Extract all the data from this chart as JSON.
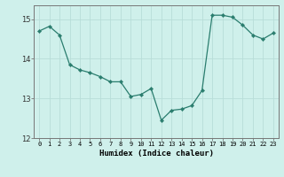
{
  "x": [
    0,
    1,
    2,
    3,
    4,
    5,
    6,
    7,
    8,
    9,
    10,
    11,
    12,
    13,
    14,
    15,
    16,
    17,
    18,
    19,
    20,
    21,
    22,
    23
  ],
  "y": [
    14.7,
    14.82,
    14.6,
    13.85,
    13.72,
    13.65,
    13.55,
    13.42,
    13.42,
    13.05,
    13.1,
    13.25,
    12.45,
    12.7,
    12.73,
    12.82,
    13.2,
    15.1,
    15.1,
    15.05,
    14.85,
    14.6,
    14.5,
    14.65
  ],
  "line_color": "#2a7d6e",
  "marker": "D",
  "marker_size": 2.2,
  "bg_color": "#cff0eb",
  "grid_color": "#b8ddd8",
  "xlabel": "Humidex (Indice chaleur)",
  "xlim": [
    -0.5,
    23.5
  ],
  "ylim": [
    12,
    15.35
  ],
  "yticks": [
    12,
    13,
    14,
    15
  ],
  "xtick_labels": [
    "0",
    "1",
    "2",
    "3",
    "4",
    "5",
    "6",
    "7",
    "8",
    "9",
    "10",
    "11",
    "12",
    "13",
    "14",
    "15",
    "16",
    "17",
    "18",
    "19",
    "20",
    "21",
    "22",
    "23"
  ]
}
